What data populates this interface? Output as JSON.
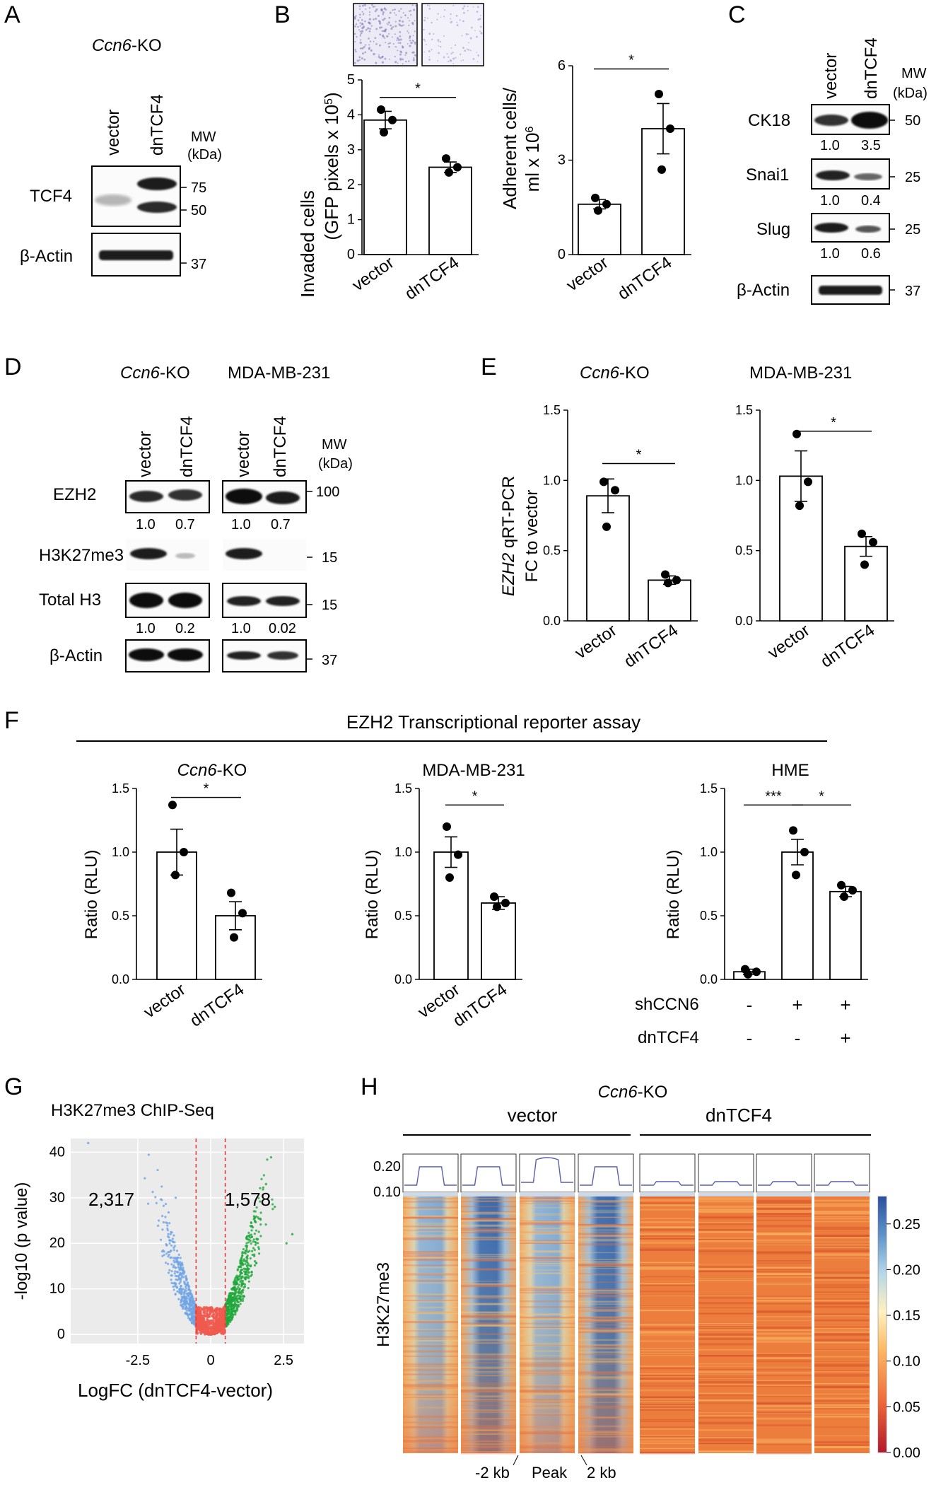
{
  "panel_letters": [
    "A",
    "B",
    "C",
    "D",
    "E",
    "F",
    "G",
    "H"
  ],
  "common": {
    "vector": "vector",
    "dnTCF4": "dnTCF4",
    "ccn6": "Ccn6",
    "ko": "-KO",
    "mw": "MW",
    "kda": "(kDa)",
    "beta_actin": "β-Actin",
    "sig": "*"
  },
  "panelA": {
    "title_italic": "Ccn6",
    "title_rest": "-KO",
    "bands": [
      "TCF4",
      "β-Actin"
    ],
    "mw_marks": [
      "75",
      "50",
      "37"
    ]
  },
  "panelB": {
    "left_ylabel": [
      "Invaded cells",
      "(GFP pixels x 10",
      "5",
      ")"
    ],
    "right_ylabel": [
      "Adherent cells/",
      "ml x 10",
      "6"
    ],
    "sig": "*"
  },
  "panelC": {
    "bands": [
      "CK18",
      "Snai1",
      "Slug",
      "β-Actin"
    ],
    "ratios": [
      [
        "1.0",
        "3.5"
      ],
      [
        "1.0",
        "0.4"
      ],
      [
        "1.0",
        "0.6"
      ]
    ],
    "mw_marks": [
      "50",
      "25",
      "25",
      "37"
    ]
  },
  "panelD": {
    "title1_italic": "Ccn6",
    "title1_rest": "-KO",
    "title2": "MDA-MB-231",
    "bands": [
      "EZH2",
      "H3K27me3",
      "Total H3",
      "β-Actin"
    ],
    "ratios_ezh2": [
      "1.0",
      "0.7",
      "1.0",
      "0.7"
    ],
    "ratios_h3": [
      "1.0",
      "0.2",
      "1.0",
      "0.02"
    ],
    "mw_marks": [
      "100",
      "15",
      "15",
      "37"
    ]
  },
  "panelE": {
    "title1_italic": "Ccn6",
    "title1_rest": "-KO",
    "title2": "MDA-MB-231",
    "ylabel_italic": "EZH2",
    "ylabel_rest": " qRT-PCR",
    "ylabel2": "FC to vector"
  },
  "panelF": {
    "heading": "EZH2 Transcriptional reporter assay",
    "sub1_italic": "Ccn6",
    "sub1_rest": "-KO",
    "sub2": "MDA-MB-231",
    "sub3": "HME",
    "ylabel": "Ratio (RLU)",
    "shccn6": "shCCN6",
    "dntcf4": "dnTCF4",
    "row1": [
      "-",
      "+",
      "+"
    ],
    "row2": [
      "-",
      "-",
      "+"
    ],
    "sig3": "***",
    "sig1": "*"
  },
  "panelG": {
    "title": "H3K27me3 ChIP-Seq",
    "ylabel": "-log10 (p value)",
    "xlabel": "LogFC (dnTCF4-vector)",
    "count_left": "2,317",
    "count_right": "1,578"
  },
  "panelH": {
    "title_italic": "Ccn6",
    "title_rest": "-KO",
    "group1": "vector",
    "group2": "dnTCF4",
    "ylabel": "H3K27me3",
    "profile_ticks": [
      "0.20",
      "0.10"
    ],
    "bottom_labels": [
      "-2 kb",
      "Peak",
      "2 kb"
    ],
    "colorbar_ticks": [
      "0.25",
      "0.20",
      "0.15",
      "0.10",
      "0.05",
      "0.00"
    ]
  },
  "chart_data": [
    {
      "id": "B-invaded",
      "type": "bar",
      "categories": [
        "vector",
        "dnTCF4"
      ],
      "values": [
        3.85,
        2.5
      ],
      "errors": [
        0.25,
        0.15
      ],
      "points": [
        [
          4.15,
          3.85,
          3.5
        ],
        [
          2.75,
          2.5,
          2.35
        ]
      ],
      "ylim": [
        0,
        5
      ],
      "yticks": [
        0,
        1,
        2,
        3,
        4,
        5
      ],
      "sig": [
        {
          "from": 0,
          "to": 1,
          "label": "*",
          "y": 4.5
        }
      ]
    },
    {
      "id": "B-adherent",
      "type": "bar",
      "categories": [
        "vector",
        "dnTCF4"
      ],
      "values": [
        1.6,
        4.0
      ],
      "errors": [
        0.15,
        0.8
      ],
      "points": [
        [
          1.8,
          1.6,
          1.4
        ],
        [
          5.1,
          4.0,
          2.7
        ]
      ],
      "ylim": [
        0,
        6
      ],
      "yticks": [
        0,
        3,
        6
      ],
      "sig": [
        {
          "from": 0,
          "to": 1,
          "label": "*",
          "y": 5.9
        }
      ]
    },
    {
      "id": "E-ccn6ko",
      "type": "bar",
      "categories": [
        "vector",
        "dnTCF4"
      ],
      "values": [
        0.89,
        0.29
      ],
      "errors": [
        0.12,
        0.03
      ],
      "points": [
        [
          0.99,
          0.93,
          0.67
        ],
        [
          0.33,
          0.29,
          0.27
        ]
      ],
      "ylim": [
        0,
        1.5
      ],
      "yticks": [
        0.0,
        0.5,
        1.0,
        1.5
      ],
      "sig": [
        {
          "from": 0,
          "to": 1,
          "label": "*",
          "y": 1.12
        }
      ]
    },
    {
      "id": "E-mda",
      "type": "bar",
      "categories": [
        "vector",
        "dnTCF4"
      ],
      "values": [
        1.03,
        0.53
      ],
      "errors": [
        0.18,
        0.07
      ],
      "points": [
        [
          1.33,
          0.99,
          0.82
        ],
        [
          0.62,
          0.56,
          0.4
        ]
      ],
      "ylim": [
        0,
        1.5
      ],
      "yticks": [
        0.0,
        0.5,
        1.0,
        1.5
      ],
      "sig": [
        {
          "from": 0,
          "to": 1,
          "label": "*",
          "y": 1.35
        }
      ]
    },
    {
      "id": "F-ccn6ko",
      "type": "bar",
      "categories": [
        "vector",
        "dnTCF4"
      ],
      "values": [
        1.0,
        0.5
      ],
      "errors": [
        0.18,
        0.11
      ],
      "points": [
        [
          1.37,
          1.0,
          0.82
        ],
        [
          0.68,
          0.52,
          0.33
        ]
      ],
      "ylim": [
        0,
        1.5
      ],
      "yticks": [
        0.0,
        0.5,
        1.0,
        1.5
      ],
      "sig": [
        {
          "from": 0,
          "to": 1,
          "label": "*",
          "y": 1.43
        }
      ]
    },
    {
      "id": "F-mda",
      "type": "bar",
      "categories": [
        "vector",
        "dnTCF4"
      ],
      "values": [
        1.0,
        0.6
      ],
      "errors": [
        0.12,
        0.05
      ],
      "points": [
        [
          1.2,
          0.98,
          0.8
        ],
        [
          0.65,
          0.6,
          0.57
        ]
      ],
      "ylim": [
        0,
        1.5
      ],
      "yticks": [
        0.0,
        0.5,
        1.0,
        1.5
      ],
      "sig": [
        {
          "from": 0,
          "to": 1,
          "label": "*",
          "y": 1.37
        }
      ]
    },
    {
      "id": "F-hme",
      "type": "bar",
      "categories": [
        "1",
        "2",
        "3"
      ],
      "values": [
        0.06,
        1.0,
        0.69
      ],
      "errors": [
        0.02,
        0.1,
        0.04
      ],
      "points": [
        [
          0.08,
          0.06,
          0.04
        ],
        [
          1.17,
          1.0,
          0.82
        ],
        [
          0.74,
          0.7,
          0.65
        ]
      ],
      "ylim": [
        0,
        1.5
      ],
      "yticks": [
        0.0,
        0.5,
        1.0,
        1.5
      ],
      "sig": [
        {
          "from": 0,
          "to": 1,
          "label": "***",
          "y": 1.37
        },
        {
          "from": 1,
          "to": 2,
          "label": "*",
          "y": 1.37
        }
      ]
    },
    {
      "id": "G-volcano",
      "type": "scatter",
      "xlim": [
        -4.8,
        3.2
      ],
      "ylim": [
        -2,
        43
      ],
      "xticks": [
        -2.5,
        0,
        2.5
      ],
      "yticks": [
        0,
        10,
        20,
        30,
        40
      ],
      "thresholds": [
        -0.5,
        0.5
      ],
      "groups": [
        {
          "name": "down",
          "color": "#6fa4e6",
          "count": 2317
        },
        {
          "name": "ns",
          "color": "#f05a4f"
        },
        {
          "name": "up",
          "color": "#1fa83a",
          "count": 1578
        }
      ]
    },
    {
      "id": "H-heatmap",
      "type": "heatmap",
      "columns": 8,
      "colorbar_range": [
        0.0,
        0.28
      ]
    }
  ]
}
